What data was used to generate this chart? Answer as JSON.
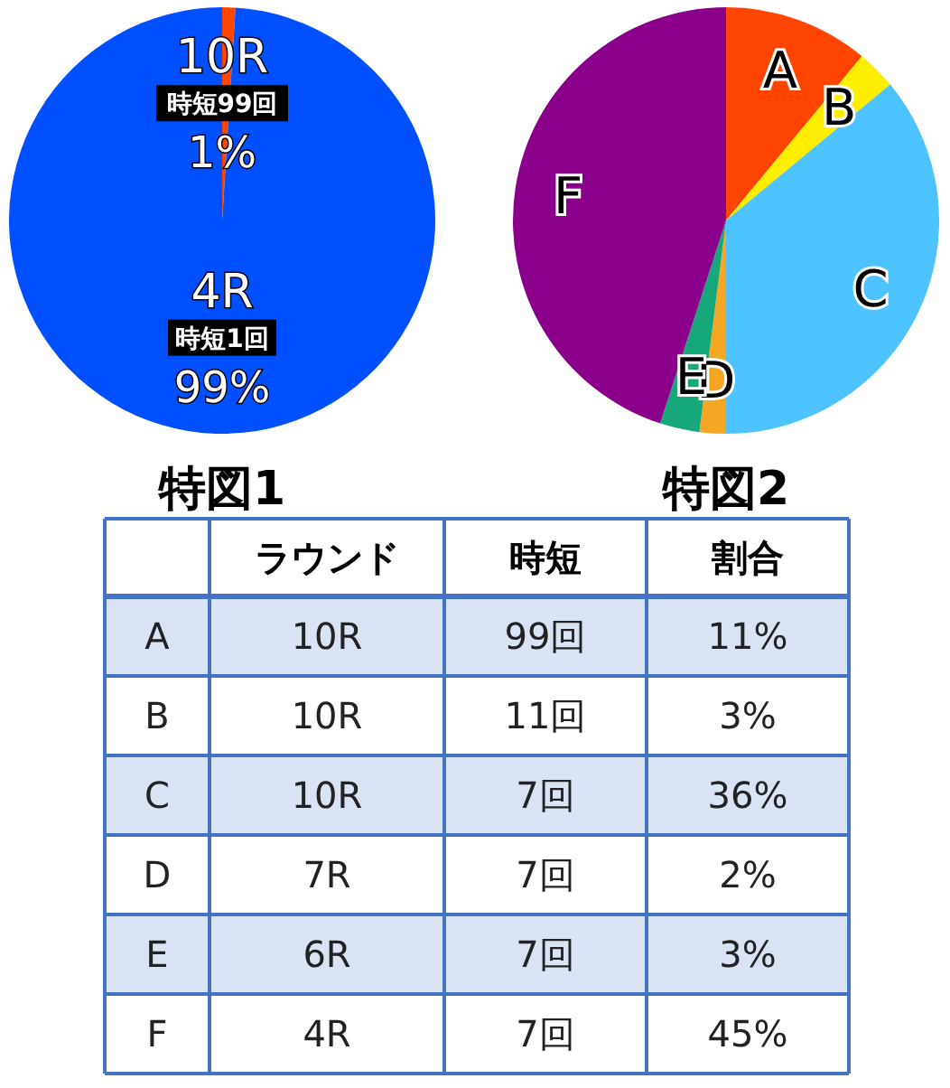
{
  "chart_data": [
    {
      "type": "pie",
      "title": "特図1",
      "categories": [
        "10R",
        "4R"
      ],
      "values": [
        1,
        99
      ],
      "colors": [
        "#ff4500",
        "#0050ff"
      ],
      "value_labels": [
        "1%",
        "99%"
      ],
      "annotations": [
        "時短99回",
        "時短1回"
      ]
    },
    {
      "type": "pie",
      "title": "特図2",
      "categories": [
        "A",
        "B",
        "C",
        "D",
        "E",
        "F"
      ],
      "values": [
        11,
        3,
        36,
        2,
        3,
        45
      ],
      "colors": [
        "#ff4500",
        "#ffee00",
        "#4dc3ff",
        "#f5a623",
        "#16a77a",
        "#8b008b"
      ]
    },
    {
      "type": "other",
      "categories": [
        "ラウンド",
        "時短",
        "割合"
      ],
      "y_categories": [
        "A",
        "B",
        "C",
        "D",
        "E",
        "F"
      ],
      "cell_labels": [
        [
          "10R",
          "99回",
          "11%"
        ],
        [
          "10R",
          "11回",
          "3%"
        ],
        [
          "10R",
          "7回",
          "36%"
        ],
        [
          "7R",
          "7回",
          "2%"
        ],
        [
          "6R",
          "7回",
          "3%"
        ],
        [
          "4R",
          "7回",
          "45%"
        ]
      ]
    }
  ]
}
